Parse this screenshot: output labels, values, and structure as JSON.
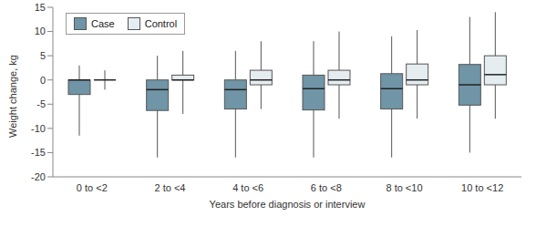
{
  "chart_data": {
    "type": "box",
    "x_label": "Years before diagnosis or interview",
    "y_label": "Weight change, kg",
    "categories": [
      "0 to <2",
      "2 to <4",
      "4 to <6",
      "6 to <8",
      "8 to <10",
      "10 to <12"
    ],
    "series": [
      {
        "name": "Case",
        "color": "#6f95a6",
        "whisker_low": [
          -11.5,
          -16,
          -16,
          -16,
          -16,
          -15
        ],
        "q1": [
          -3,
          -6.3,
          -6,
          -6.2,
          -6,
          -5.2
        ],
        "median": [
          0,
          -2,
          -2,
          -1.8,
          -1.8,
          -1
        ],
        "q3": [
          0,
          0,
          0,
          1,
          1.3,
          3.2
        ],
        "whisker_high": [
          3,
          5,
          6,
          8,
          9,
          13
        ]
      },
      {
        "name": "Control",
        "color": "#e6edf1",
        "whisker_low": [
          -2,
          -7,
          -6,
          -8,
          -8,
          -8
        ],
        "q1": [
          0,
          0,
          -1,
          -1,
          -1,
          -1
        ],
        "median": [
          0,
          0,
          0,
          0,
          0,
          1.1
        ],
        "q3": [
          0,
          1,
          2,
          2,
          3.3,
          5
        ],
        "whisker_high": [
          2,
          6,
          8,
          10,
          10.3,
          14
        ]
      }
    ],
    "ylim": [
      -20,
      15
    ],
    "yticks": [
      -20,
      -15,
      -10,
      -5,
      0,
      5,
      10,
      15
    ],
    "grid": false,
    "legend": "upper left"
  }
}
